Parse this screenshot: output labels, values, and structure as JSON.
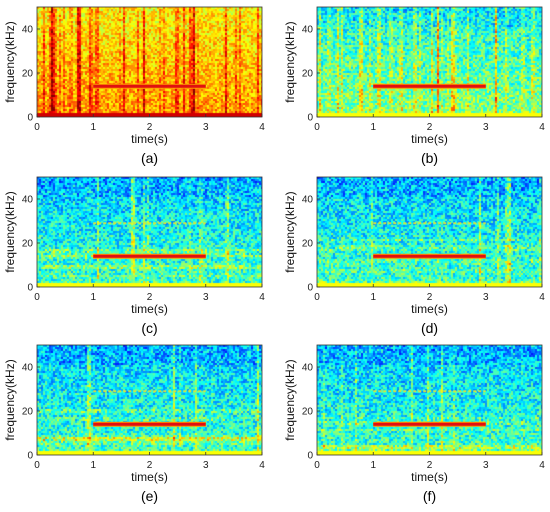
{
  "chart_data": [
    {
      "type": "heatmap",
      "label": "(a)",
      "xlabel": "time(s)",
      "ylabel": "frequency(kHz)",
      "xlim": [
        0,
        4
      ],
      "ylim": [
        0,
        50
      ],
      "xticks": [
        0,
        1,
        2,
        3,
        4
      ],
      "yticks": [
        0,
        20,
        40
      ],
      "background_level": "high",
      "tones": [
        {
          "freq": 14,
          "t_start": 1,
          "t_end": 3
        }
      ]
    },
    {
      "type": "heatmap",
      "label": "(b)",
      "xlabel": "time(s)",
      "ylabel": "frequency(kHz)",
      "xlim": [
        0,
        4
      ],
      "ylim": [
        0,
        50
      ],
      "xticks": [
        0,
        1,
        2,
        3,
        4
      ],
      "yticks": [
        0,
        20,
        40
      ],
      "background_level": "medium",
      "tones": [
        {
          "freq": 14,
          "t_start": 1,
          "t_end": 3
        }
      ]
    },
    {
      "type": "heatmap",
      "label": "(c)",
      "xlabel": "time(s)",
      "ylabel": "frequency(kHz)",
      "xlim": [
        0,
        4
      ],
      "ylim": [
        0,
        50
      ],
      "xticks": [
        0,
        1,
        2,
        3,
        4
      ],
      "yticks": [
        0,
        20,
        40
      ],
      "background_level": "low",
      "tones": [
        {
          "freq": 14,
          "t_start": 1,
          "t_end": 3
        },
        {
          "freq": 29,
          "t_start": 1,
          "t_end": 3,
          "faint": true
        }
      ]
    },
    {
      "type": "heatmap",
      "label": "(d)",
      "xlabel": "time(s)",
      "ylabel": "frequency(kHz)",
      "xlim": [
        0,
        4
      ],
      "ylim": [
        0,
        50
      ],
      "xticks": [
        0,
        1,
        2,
        3,
        4
      ],
      "yticks": [
        0,
        20,
        40
      ],
      "background_level": "low",
      "tones": [
        {
          "freq": 14,
          "t_start": 1,
          "t_end": 3
        },
        {
          "freq": 29,
          "t_start": 1,
          "t_end": 3,
          "faint": true
        }
      ]
    },
    {
      "type": "heatmap",
      "label": "(e)",
      "xlabel": "time(s)",
      "ylabel": "frequency(kHz)",
      "xlim": [
        0,
        4
      ],
      "ylim": [
        0,
        50
      ],
      "xticks": [
        0,
        1,
        2,
        3,
        4
      ],
      "yticks": [
        0,
        20,
        40
      ],
      "background_level": "low",
      "tones": [
        {
          "freq": 14,
          "t_start": 1,
          "t_end": 3
        },
        {
          "freq": 29,
          "t_start": 1,
          "t_end": 3,
          "faint": true
        }
      ]
    },
    {
      "type": "heatmap",
      "label": "(f)",
      "xlabel": "time(s)",
      "ylabel": "frequency(kHz)",
      "xlim": [
        0,
        4
      ],
      "ylim": [
        0,
        50
      ],
      "xticks": [
        0,
        1,
        2,
        3,
        4
      ],
      "yticks": [
        0,
        20,
        40
      ],
      "background_level": "low",
      "tones": [
        {
          "freq": 14,
          "t_start": 1,
          "t_end": 3
        },
        {
          "freq": 29,
          "t_start": 1,
          "t_end": 3,
          "faint": true
        }
      ]
    }
  ],
  "colors": {
    "tone": "#e01010",
    "tone_edge": "#ff9a00",
    "colormap": "jet"
  }
}
